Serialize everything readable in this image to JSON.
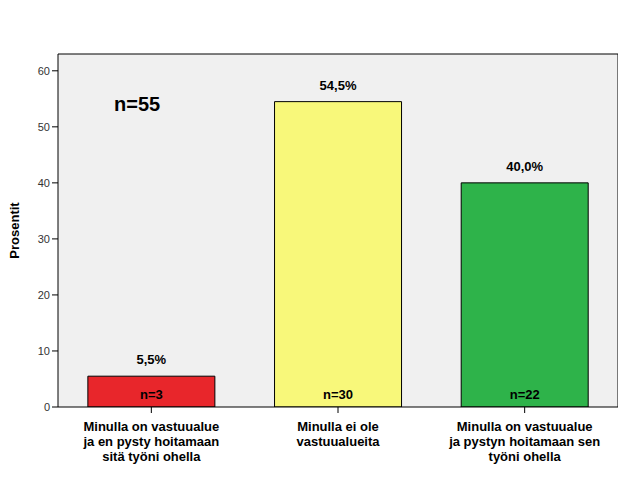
{
  "chart_data": {
    "type": "bar",
    "y_label": "Prosentit",
    "annotation": "n=55",
    "categories": [
      "Minulla on vastuualue ja en pysty hoitamaan sitä työni ohella",
      "Minulla ei ole vastuualueita",
      "Minulla on vastuualue ja pystyn hoitamaan sen työni ohella"
    ],
    "values": [
      5.5,
      54.5,
      40.0
    ],
    "value_labels": [
      "5,5%",
      "54,5%",
      "40,0%"
    ],
    "count_labels": [
      "n=3",
      "n=30",
      "n=22"
    ],
    "colors": [
      "#e8262b",
      "#f8f87a",
      "#2eb34a"
    ],
    "ylim": [
      0,
      63
    ],
    "yticks": [
      0,
      10,
      20,
      30,
      40,
      50,
      60
    ],
    "grid": false,
    "data_labels": true
  }
}
